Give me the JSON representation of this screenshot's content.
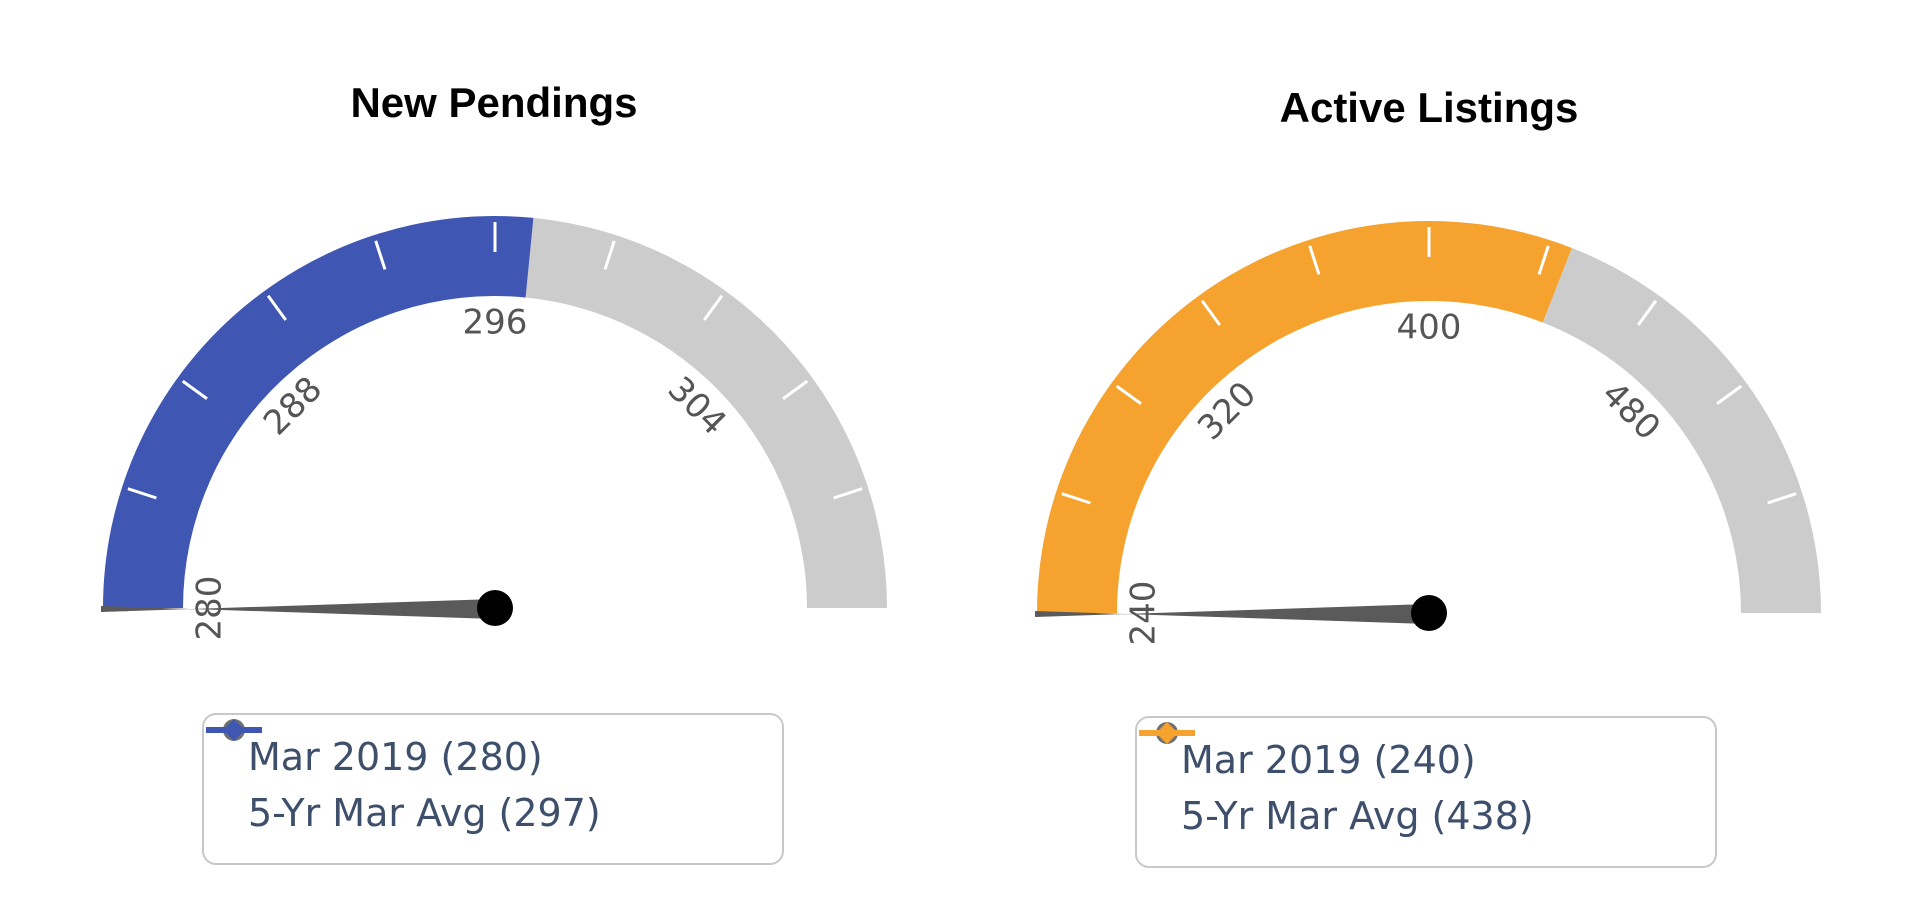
{
  "chart_data": [
    {
      "type": "gauge",
      "title": "New Pendings",
      "min": 280,
      "max": 312,
      "band_value": 297,
      "needle_value": 280,
      "band_color": "#3f56b2",
      "remainder_color": "#cccccc",
      "needle_color": "#5a5a5a",
      "tick_labels": [
        280,
        288,
        296,
        304
      ],
      "tick_labels_text": [
        "280",
        "288",
        "296",
        "304"
      ],
      "legend": [
        {
          "label": "Mar 2019 (280)",
          "color": "#707070",
          "marker": "circle"
        },
        {
          "label": "5-Yr Mar Avg (297)",
          "color": "#3f56b2",
          "marker": "diamond"
        }
      ]
    },
    {
      "type": "gauge",
      "title": "Active Listings",
      "min": 240,
      "max": 560,
      "band_value": 438,
      "needle_value": 240,
      "band_color": "#f5a22f",
      "remainder_color": "#cccccc",
      "needle_color": "#5a5a5a",
      "tick_labels": [
        240,
        320,
        400,
        480
      ],
      "tick_labels_text": [
        "240",
        "320",
        "400",
        "480"
      ],
      "legend": [
        {
          "label": "Mar 2019 (240)",
          "color": "#707070",
          "marker": "circle"
        },
        {
          "label": "5-Yr Mar Avg (438)",
          "color": "#f5a22f",
          "marker": "diamond"
        }
      ]
    }
  ]
}
